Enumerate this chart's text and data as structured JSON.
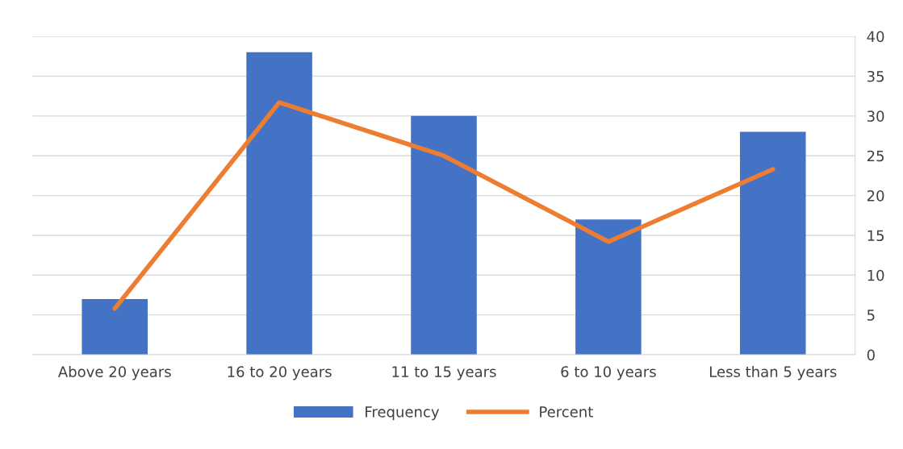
{
  "chart_data": {
    "type": "bar",
    "categories": [
      "Above 20 years",
      "16 to 20 years",
      "11 to 15 years",
      "6 to 10 years",
      "Less than 5 years"
    ],
    "series": [
      {
        "name": "Frequency",
        "color": "#4472c4",
        "values": [
          7,
          38,
          30,
          17,
          28
        ]
      },
      {
        "name": "Percent",
        "type": "line",
        "color": "#ed7d31",
        "values": [
          5.8,
          31.7,
          25,
          14.2,
          23.3
        ]
      }
    ],
    "ylim": [
      0,
      40
    ],
    "yticks": [
      0,
      5,
      10,
      15,
      20,
      25,
      30,
      35,
      40
    ],
    "grid": "y",
    "legend": "bottom",
    "marker": "none",
    "line_style": "solid"
  }
}
